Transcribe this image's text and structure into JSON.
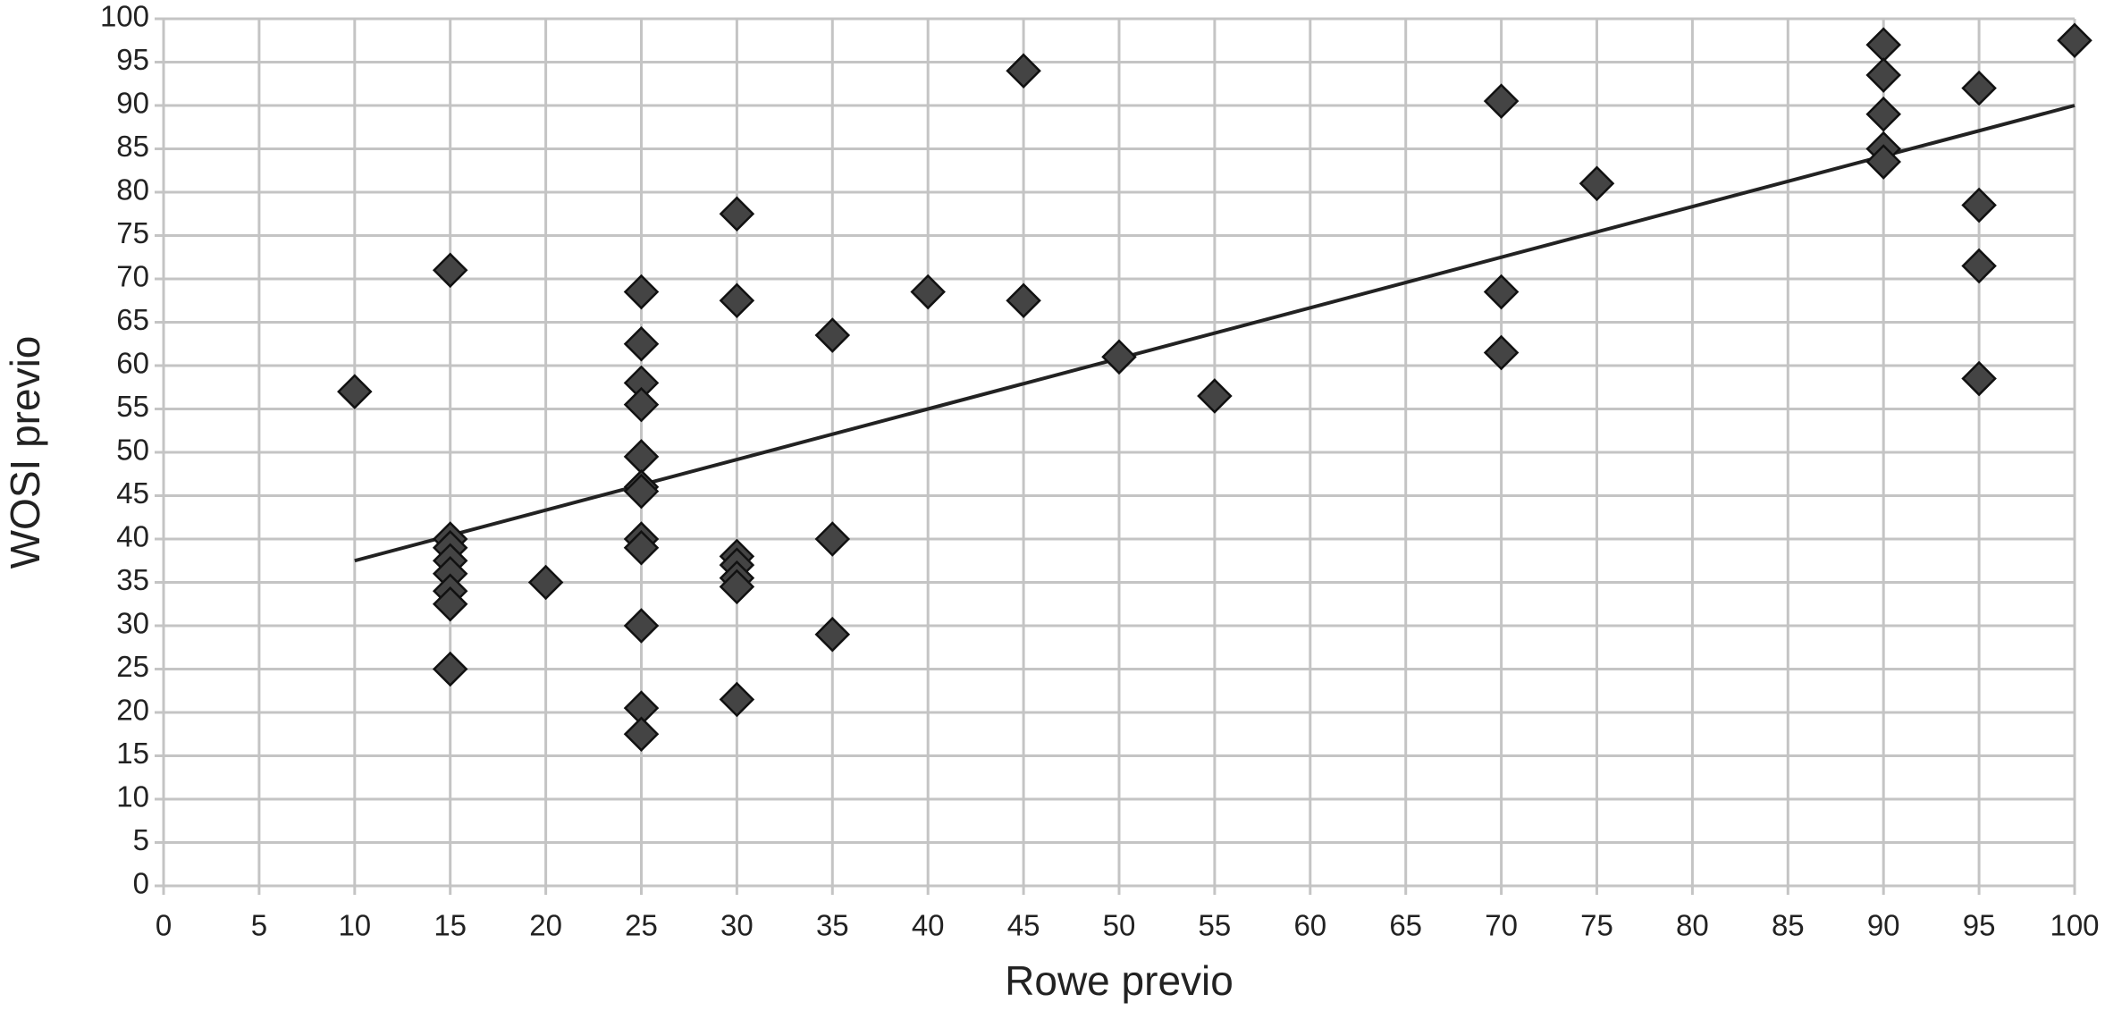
{
  "chart_data": {
    "type": "scatter",
    "x_label": "Rowe previo",
    "y_label": "WOSI previo",
    "series": [
      {
        "color": "#444444",
        "x": [
          10,
          15,
          15,
          15,
          15,
          15,
          15,
          15,
          15,
          20,
          25,
          25,
          25,
          25,
          25,
          25,
          25,
          25,
          25,
          25,
          25,
          25,
          30,
          30,
          30,
          30,
          30,
          30,
          30,
          35,
          35,
          35,
          40,
          45,
          45,
          50,
          55,
          70,
          70,
          70,
          75,
          90,
          90,
          90,
          90,
          90,
          95,
          95,
          95,
          95,
          100
        ],
        "y": [
          57,
          71,
          40,
          39,
          37.5,
          36,
          34,
          32.5,
          25,
          35,
          68.5,
          62.5,
          58,
          55.5,
          49.5,
          46,
          45.5,
          40,
          39,
          30,
          20.5,
          17.5,
          77.5,
          67.5,
          38,
          37,
          35.5,
          34.5,
          21.5,
          63.5,
          40,
          29,
          68.5,
          94,
          67.5,
          61,
          56.5,
          90.5,
          68.5,
          61.5,
          81,
          97,
          93.5,
          89,
          85,
          83.5,
          92,
          78.5,
          71.5,
          58.5,
          97.5
        ]
      }
    ],
    "trend_line": {
      "color": "#222222",
      "x": [
        10,
        100
      ],
      "y": [
        37.5,
        90
      ]
    },
    "xlim": [
      0,
      100
    ],
    "ylim": [
      0,
      100
    ],
    "xticks": [
      0,
      5,
      10,
      15,
      20,
      25,
      30,
      35,
      40,
      45,
      50,
      55,
      60,
      65,
      70,
      75,
      80,
      85,
      90,
      95,
      100
    ],
    "yticks": [
      0,
      5,
      10,
      15,
      20,
      25,
      30,
      35,
      40,
      45,
      50,
      55,
      60,
      65,
      70,
      75,
      80,
      85,
      90,
      95,
      100
    ],
    "grid": true
  }
}
